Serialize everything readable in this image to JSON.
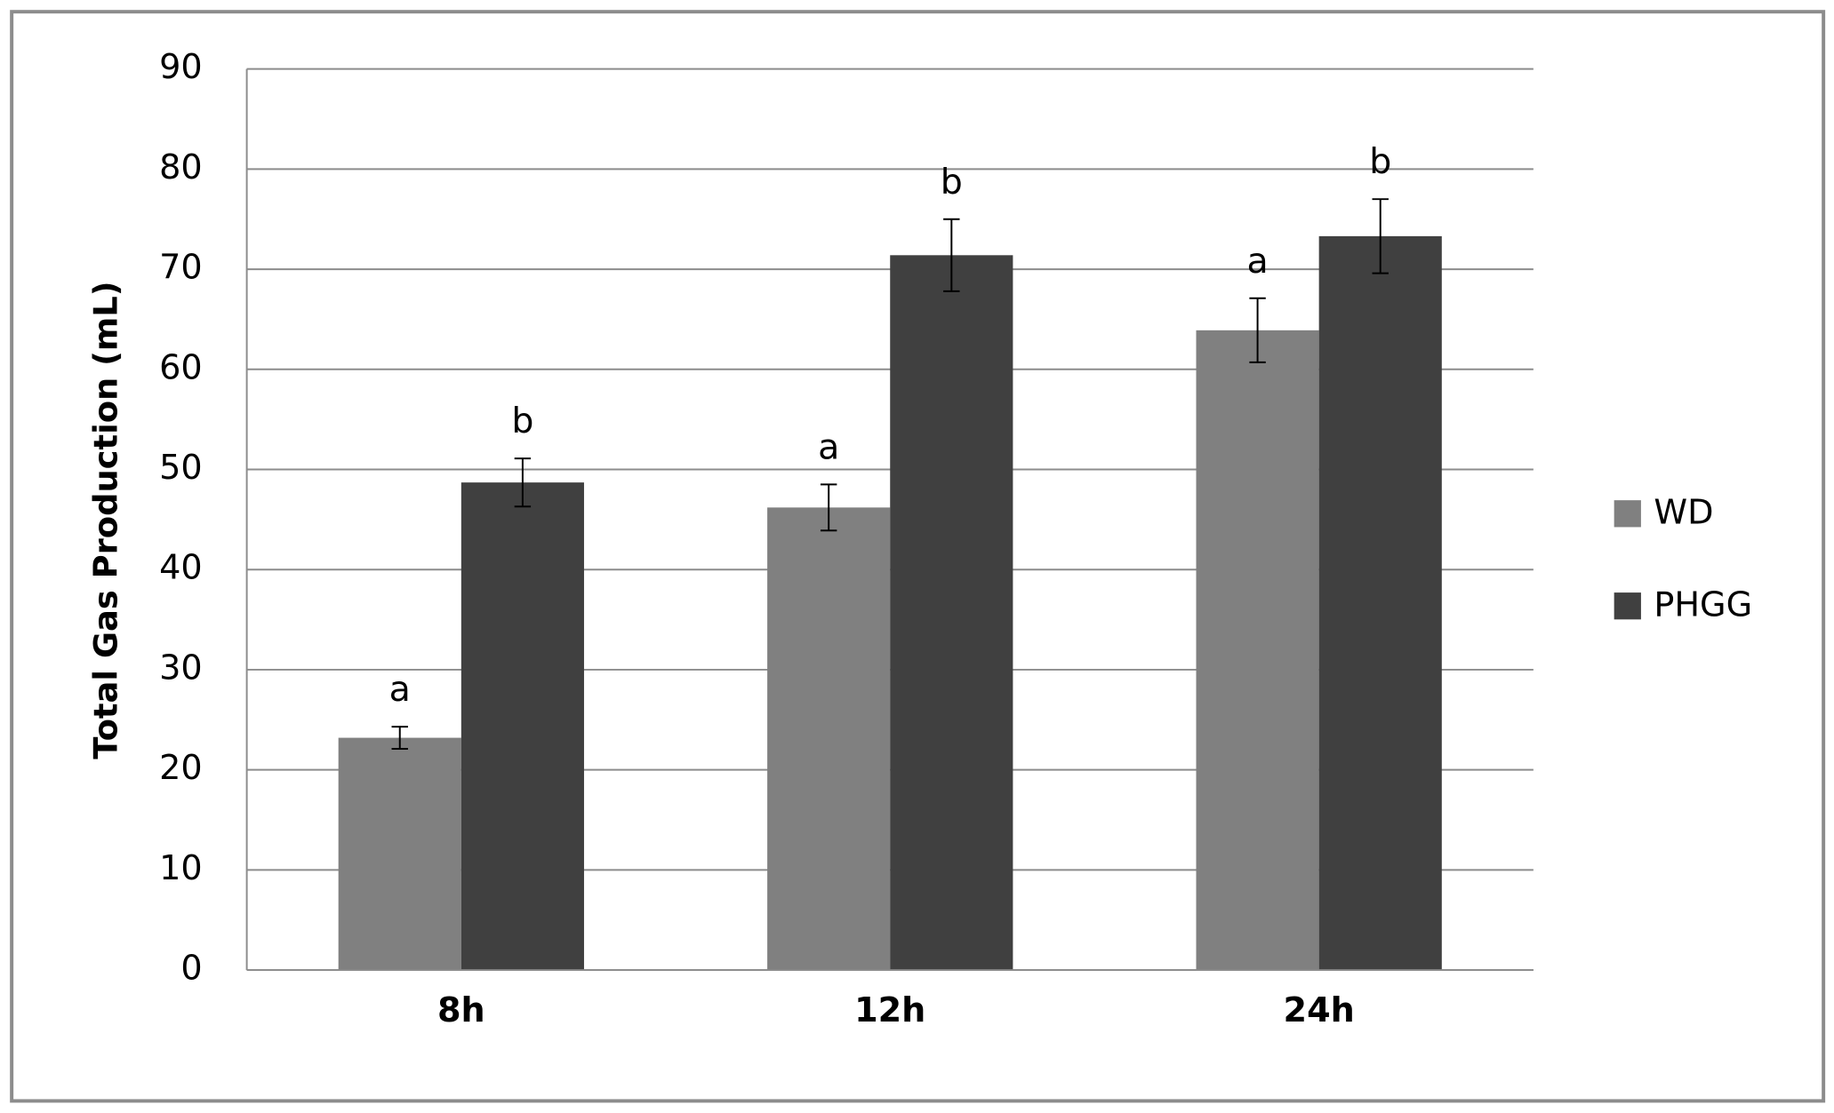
{
  "chart_data": {
    "type": "bar",
    "y_label": "Total Gas Production (mL)",
    "categories": [
      "8h",
      "12h",
      "24h"
    ],
    "series": [
      {
        "name": "WD",
        "color": "#808080",
        "values": [
          23.2,
          46.2,
          63.9
        ],
        "errors": [
          1.1,
          2.3,
          3.2
        ],
        "letters": [
          "a",
          "a",
          "a"
        ]
      },
      {
        "name": "PHGG",
        "color": "#404040",
        "values": [
          48.7,
          71.4,
          73.3
        ],
        "errors": [
          2.4,
          3.6,
          3.7
        ],
        "letters": [
          "b",
          "b",
          "b"
        ]
      }
    ],
    "ylim": [
      0,
      90
    ],
    "yticks": [
      0,
      10,
      20,
      30,
      40,
      50,
      60,
      70,
      80,
      90
    ],
    "grid": true,
    "legend": "right"
  }
}
